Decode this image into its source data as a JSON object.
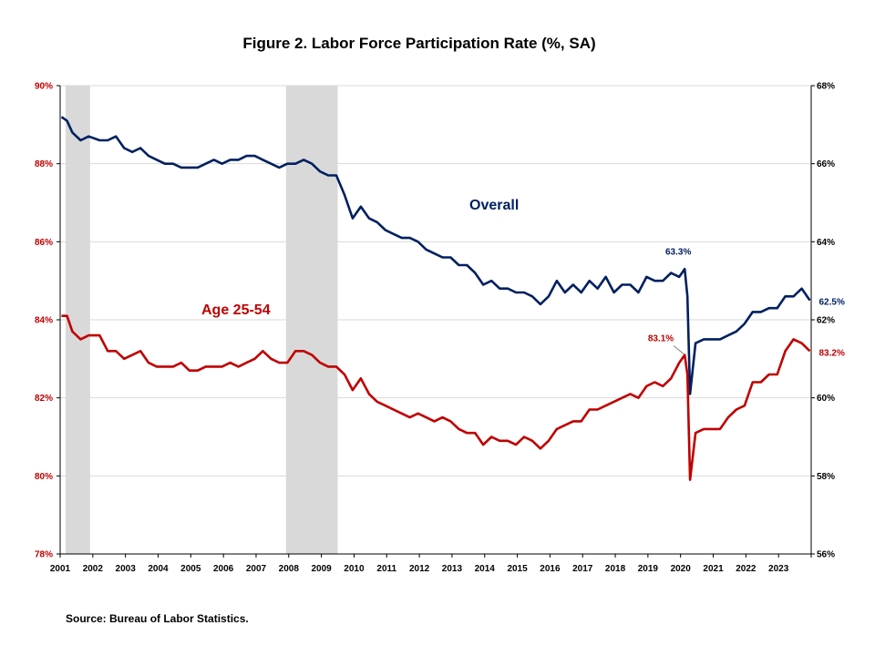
{
  "chart_data": {
    "type": "line",
    "title": "Figure 2. Labor Force Participation  Rate (%, SA)",
    "source": "Source: Bureau of Labor Statistics.",
    "x_ticks": [
      "2001",
      "2002",
      "2003",
      "2004",
      "2005",
      "2006",
      "2007",
      "2008",
      "2009",
      "2010",
      "2011",
      "2012",
      "2013",
      "2014",
      "2015",
      "2016",
      "2017",
      "2018",
      "2019",
      "2020",
      "2021",
      "2022",
      "2023"
    ],
    "xlim": [
      "2001-01",
      "2023-12"
    ],
    "left_axis": {
      "ylim": [
        78,
        90
      ],
      "ticks": [
        "78%",
        "80%",
        "82%",
        "84%",
        "86%",
        "88%",
        "90%"
      ],
      "color": "#c00000"
    },
    "right_axis": {
      "ylim": [
        56,
        68
      ],
      "ticks": [
        "56%",
        "58%",
        "60%",
        "62%",
        "64%",
        "66%",
        "68%"
      ],
      "color": "#000000"
    },
    "recessions": [
      {
        "start": "2001-03",
        "end": "2001-11"
      },
      {
        "start": "2007-12",
        "end": "2009-06"
      }
    ],
    "grid": "horizontal",
    "legend": "none",
    "series": [
      {
        "name": "Overall",
        "axis": "right",
        "color": "#002060",
        "points": [
          [
            "2001-01",
            67.2
          ],
          [
            "2001-03",
            67.1
          ],
          [
            "2001-05",
            66.8
          ],
          [
            "2001-08",
            66.6
          ],
          [
            "2001-11",
            66.7
          ],
          [
            "2002-03",
            66.6
          ],
          [
            "2002-06",
            66.6
          ],
          [
            "2002-09",
            66.7
          ],
          [
            "2002-12",
            66.4
          ],
          [
            "2003-03",
            66.3
          ],
          [
            "2003-06",
            66.4
          ],
          [
            "2003-09",
            66.2
          ],
          [
            "2003-12",
            66.1
          ],
          [
            "2004-03",
            66.0
          ],
          [
            "2004-06",
            66.0
          ],
          [
            "2004-09",
            65.9
          ],
          [
            "2004-12",
            65.9
          ],
          [
            "2005-03",
            65.9
          ],
          [
            "2005-06",
            66.0
          ],
          [
            "2005-09",
            66.1
          ],
          [
            "2005-12",
            66.0
          ],
          [
            "2006-03",
            66.1
          ],
          [
            "2006-06",
            66.1
          ],
          [
            "2006-09",
            66.2
          ],
          [
            "2006-12",
            66.2
          ],
          [
            "2007-03",
            66.1
          ],
          [
            "2007-06",
            66.0
          ],
          [
            "2007-09",
            65.9
          ],
          [
            "2007-12",
            66.0
          ],
          [
            "2008-03",
            66.0
          ],
          [
            "2008-06",
            66.1
          ],
          [
            "2008-09",
            66.0
          ],
          [
            "2008-12",
            65.8
          ],
          [
            "2009-03",
            65.7
          ],
          [
            "2009-06",
            65.7
          ],
          [
            "2009-09",
            65.2
          ],
          [
            "2009-12",
            64.6
          ],
          [
            "2010-03",
            64.9
          ],
          [
            "2010-06",
            64.6
          ],
          [
            "2010-09",
            64.5
          ],
          [
            "2010-12",
            64.3
          ],
          [
            "2011-03",
            64.2
          ],
          [
            "2011-06",
            64.1
          ],
          [
            "2011-09",
            64.1
          ],
          [
            "2011-12",
            64.0
          ],
          [
            "2012-03",
            63.8
          ],
          [
            "2012-06",
            63.7
          ],
          [
            "2012-09",
            63.6
          ],
          [
            "2012-12",
            63.6
          ],
          [
            "2013-03",
            63.4
          ],
          [
            "2013-06",
            63.4
          ],
          [
            "2013-09",
            63.2
          ],
          [
            "2013-12",
            62.9
          ],
          [
            "2014-03",
            63.0
          ],
          [
            "2014-06",
            62.8
          ],
          [
            "2014-09",
            62.8
          ],
          [
            "2014-12",
            62.7
          ],
          [
            "2015-03",
            62.7
          ],
          [
            "2015-06",
            62.6
          ],
          [
            "2015-09",
            62.4
          ],
          [
            "2015-12",
            62.6
          ],
          [
            "2016-03",
            63.0
          ],
          [
            "2016-06",
            62.7
          ],
          [
            "2016-09",
            62.9
          ],
          [
            "2016-12",
            62.7
          ],
          [
            "2017-03",
            63.0
          ],
          [
            "2017-06",
            62.8
          ],
          [
            "2017-09",
            63.1
          ],
          [
            "2017-12",
            62.7
          ],
          [
            "2018-03",
            62.9
          ],
          [
            "2018-06",
            62.9
          ],
          [
            "2018-09",
            62.7
          ],
          [
            "2018-12",
            63.1
          ],
          [
            "2019-03",
            63.0
          ],
          [
            "2019-06",
            63.0
          ],
          [
            "2019-09",
            63.2
          ],
          [
            "2019-12",
            63.1
          ],
          [
            "2020-02",
            63.3
          ],
          [
            "2020-03",
            62.6
          ],
          [
            "2020-04",
            60.1
          ],
          [
            "2020-06",
            61.4
          ],
          [
            "2020-09",
            61.5
          ],
          [
            "2020-12",
            61.5
          ],
          [
            "2021-03",
            61.5
          ],
          [
            "2021-06",
            61.6
          ],
          [
            "2021-09",
            61.7
          ],
          [
            "2021-12",
            61.9
          ],
          [
            "2022-03",
            62.2
          ],
          [
            "2022-06",
            62.2
          ],
          [
            "2022-09",
            62.3
          ],
          [
            "2022-12",
            62.3
          ],
          [
            "2023-03",
            62.6
          ],
          [
            "2023-06",
            62.6
          ],
          [
            "2023-09",
            62.8
          ],
          [
            "2023-12",
            62.5
          ]
        ],
        "label": "Overall",
        "annotations": [
          {
            "at": "2020-02",
            "text": "63.3%"
          },
          {
            "at": "2023-12",
            "text": "62.5%"
          }
        ]
      },
      {
        "name": "Age 25-54",
        "axis": "left",
        "color": "#c00000",
        "points": [
          [
            "2001-01",
            84.1
          ],
          [
            "2001-03",
            84.1
          ],
          [
            "2001-05",
            83.7
          ],
          [
            "2001-08",
            83.5
          ],
          [
            "2001-11",
            83.6
          ],
          [
            "2002-03",
            83.6
          ],
          [
            "2002-06",
            83.2
          ],
          [
            "2002-09",
            83.2
          ],
          [
            "2002-12",
            83.0
          ],
          [
            "2003-03",
            83.1
          ],
          [
            "2003-06",
            83.2
          ],
          [
            "2003-09",
            82.9
          ],
          [
            "2003-12",
            82.8
          ],
          [
            "2004-03",
            82.8
          ],
          [
            "2004-06",
            82.8
          ],
          [
            "2004-09",
            82.9
          ],
          [
            "2004-12",
            82.7
          ],
          [
            "2005-03",
            82.7
          ],
          [
            "2005-06",
            82.8
          ],
          [
            "2005-09",
            82.8
          ],
          [
            "2005-12",
            82.8
          ],
          [
            "2006-03",
            82.9
          ],
          [
            "2006-06",
            82.8
          ],
          [
            "2006-09",
            82.9
          ],
          [
            "2006-12",
            83.0
          ],
          [
            "2007-03",
            83.2
          ],
          [
            "2007-06",
            83.0
          ],
          [
            "2007-09",
            82.9
          ],
          [
            "2007-12",
            82.9
          ],
          [
            "2008-03",
            83.2
          ],
          [
            "2008-06",
            83.2
          ],
          [
            "2008-09",
            83.1
          ],
          [
            "2008-12",
            82.9
          ],
          [
            "2009-03",
            82.8
          ],
          [
            "2009-06",
            82.8
          ],
          [
            "2009-09",
            82.6
          ],
          [
            "2009-12",
            82.2
          ],
          [
            "2010-03",
            82.5
          ],
          [
            "2010-06",
            82.1
          ],
          [
            "2010-09",
            81.9
          ],
          [
            "2010-12",
            81.8
          ],
          [
            "2011-03",
            81.7
          ],
          [
            "2011-06",
            81.6
          ],
          [
            "2011-09",
            81.5
          ],
          [
            "2011-12",
            81.6
          ],
          [
            "2012-03",
            81.5
          ],
          [
            "2012-06",
            81.4
          ],
          [
            "2012-09",
            81.5
          ],
          [
            "2012-12",
            81.4
          ],
          [
            "2013-03",
            81.2
          ],
          [
            "2013-06",
            81.1
          ],
          [
            "2013-09",
            81.1
          ],
          [
            "2013-12",
            80.8
          ],
          [
            "2014-03",
            81.0
          ],
          [
            "2014-06",
            80.9
          ],
          [
            "2014-09",
            80.9
          ],
          [
            "2014-12",
            80.8
          ],
          [
            "2015-03",
            81.0
          ],
          [
            "2015-06",
            80.9
          ],
          [
            "2015-09",
            80.7
          ],
          [
            "2015-12",
            80.9
          ],
          [
            "2016-03",
            81.2
          ],
          [
            "2016-06",
            81.3
          ],
          [
            "2016-09",
            81.4
          ],
          [
            "2016-12",
            81.4
          ],
          [
            "2017-03",
            81.7
          ],
          [
            "2017-06",
            81.7
          ],
          [
            "2017-09",
            81.8
          ],
          [
            "2017-12",
            81.9
          ],
          [
            "2018-03",
            82.0
          ],
          [
            "2018-06",
            82.1
          ],
          [
            "2018-09",
            82.0
          ],
          [
            "2018-12",
            82.3
          ],
          [
            "2019-03",
            82.4
          ],
          [
            "2019-06",
            82.3
          ],
          [
            "2019-09",
            82.5
          ],
          [
            "2019-12",
            82.9
          ],
          [
            "2020-02",
            83.1
          ],
          [
            "2020-03",
            82.6
          ],
          [
            "2020-04",
            79.9
          ],
          [
            "2020-06",
            81.1
          ],
          [
            "2020-09",
            81.2
          ],
          [
            "2020-12",
            81.2
          ],
          [
            "2021-03",
            81.2
          ],
          [
            "2021-06",
            81.5
          ],
          [
            "2021-09",
            81.7
          ],
          [
            "2021-12",
            81.8
          ],
          [
            "2022-03",
            82.4
          ],
          [
            "2022-06",
            82.4
          ],
          [
            "2022-09",
            82.6
          ],
          [
            "2022-12",
            82.6
          ],
          [
            "2023-03",
            83.2
          ],
          [
            "2023-06",
            83.5
          ],
          [
            "2023-09",
            83.4
          ],
          [
            "2023-12",
            83.2
          ]
        ],
        "label": "Age 25-54",
        "annotations": [
          {
            "at": "2020-02",
            "text": "83.1%"
          },
          {
            "at": "2023-12",
            "text": "83.2%"
          }
        ]
      }
    ]
  }
}
